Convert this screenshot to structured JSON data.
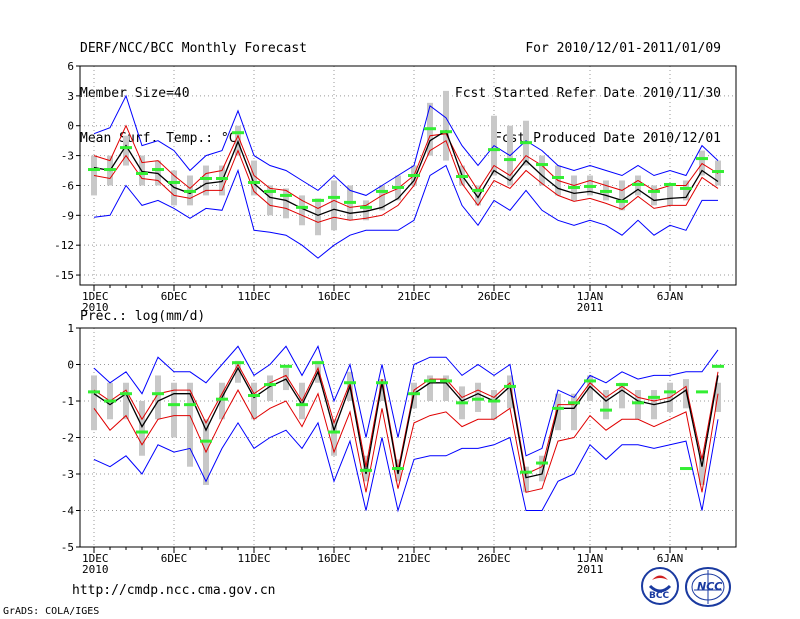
{
  "header": {
    "left": [
      "DERF/NCC/BCC Monthly Forecast",
      "Member Size=40",
      "Mean Surf. Temp.: °C"
    ],
    "right": [
      "For 2010/12/01-2011/01/09",
      "Fcst Started Refer Date 2010/11/30",
      "Fcst Produced Date 2010/12/01"
    ]
  },
  "footer": {
    "url": "http://cmdp.ncc.cma.gov.cn",
    "credit": "GrADS: COLA/IGES",
    "logo_bcc": "BCC",
    "logo_ncc": "NCC"
  },
  "colors": {
    "ensemble": "#0000ff",
    "spread": "#e00000",
    "mean": "#000000",
    "obs": "#33ee33",
    "bar": "#c8c8c8",
    "grid": "#999999"
  },
  "chart_data": [
    {
      "type": "line",
      "title": "Mean Surf. Temp.: °C",
      "x": [
        1,
        2,
        3,
        4,
        5,
        6,
        7,
        8,
        9,
        10,
        11,
        12,
        13,
        14,
        15,
        16,
        17,
        18,
        19,
        20,
        21,
        22,
        23,
        24,
        25,
        26,
        27,
        28,
        29,
        30,
        31,
        32,
        33,
        34,
        35,
        36,
        37,
        38,
        39,
        40
      ],
      "xticks": [
        {
          "day": 1,
          "label": "1DEC",
          "sub": "2010"
        },
        {
          "day": 6,
          "label": "6DEC",
          "sub": ""
        },
        {
          "day": 11,
          "label": "11DEC",
          "sub": ""
        },
        {
          "day": 16,
          "label": "16DEC",
          "sub": ""
        },
        {
          "day": 21,
          "label": "21DEC",
          "sub": ""
        },
        {
          "day": 26,
          "label": "26DEC",
          "sub": ""
        },
        {
          "day": 32,
          "label": "1JAN",
          "sub": "2011"
        },
        {
          "day": 37,
          "label": "6JAN",
          "sub": ""
        }
      ],
      "ylim": [
        -16,
        6
      ],
      "yticks": [
        6,
        3,
        0,
        -3,
        -6,
        -9,
        -12,
        -15
      ],
      "series": [
        {
          "name": "ensemble max",
          "values": [
            -0.8,
            -0.2,
            3.0,
            -2.0,
            -1.5,
            -2.5,
            -4.5,
            -3.0,
            -2.5,
            1.5,
            -3.0,
            -4.0,
            -4.5,
            -5.5,
            -6.5,
            -5.0,
            -6.5,
            -7.0,
            -6.0,
            -5.0,
            -4.0,
            2.0,
            0.8,
            -2.0,
            -4.0,
            -2.0,
            -3.0,
            -1.5,
            -2.5,
            -4.0,
            -4.5,
            -4.0,
            -4.5,
            -5.0,
            -4.0,
            -5.0,
            -4.5,
            -5.0,
            -2.0,
            -3.5
          ]
        },
        {
          "name": "spread upper",
          "values": [
            -3.0,
            -3.5,
            0.0,
            -3.7,
            -3.5,
            -5.0,
            -6.3,
            -4.8,
            -4.5,
            -1.0,
            -5.0,
            -6.3,
            -6.5,
            -7.5,
            -8.3,
            -7.5,
            -8.2,
            -8.0,
            -7.0,
            -6.3,
            -5.0,
            -1.0,
            -0.8,
            -4.0,
            -6.5,
            -4.0,
            -5.0,
            -3.0,
            -4.0,
            -5.5,
            -6.0,
            -5.5,
            -6.0,
            -6.5,
            -5.5,
            -6.5,
            -6.0,
            -6.0,
            -3.8,
            -4.8
          ]
        },
        {
          "name": "ensemble mean",
          "values": [
            -4.2,
            -4.5,
            -2.0,
            -4.6,
            -4.8,
            -6.2,
            -6.8,
            -5.8,
            -5.6,
            -1.6,
            -5.8,
            -7.2,
            -7.5,
            -8.3,
            -9.0,
            -8.4,
            -8.8,
            -8.6,
            -8.2,
            -7.3,
            -5.5,
            -1.5,
            -0.5,
            -5.0,
            -7.2,
            -4.5,
            -5.5,
            -3.5,
            -5.0,
            -6.3,
            -6.8,
            -6.6,
            -7.0,
            -7.5,
            -6.4,
            -7.5,
            -7.3,
            -7.2,
            -4.5,
            -5.6
          ]
        },
        {
          "name": "spread lower",
          "values": [
            -5.0,
            -5.3,
            -3.0,
            -5.3,
            -5.5,
            -7.0,
            -7.3,
            -6.5,
            -6.5,
            -2.5,
            -6.6,
            -8.0,
            -8.3,
            -9.0,
            -9.7,
            -9.2,
            -9.5,
            -9.3,
            -9.0,
            -8.0,
            -6.0,
            -2.5,
            -1.5,
            -5.8,
            -8.0,
            -5.5,
            -6.3,
            -4.5,
            -5.8,
            -7.0,
            -7.6,
            -7.3,
            -7.8,
            -8.4,
            -7.1,
            -8.3,
            -8.0,
            -8.0,
            -5.2,
            -6.3
          ]
        },
        {
          "name": "ensemble min",
          "values": [
            -9.2,
            -9.0,
            -6.0,
            -8.0,
            -7.5,
            -8.3,
            -9.3,
            -8.3,
            -8.5,
            -4.5,
            -10.5,
            -10.7,
            -11.0,
            -12.0,
            -13.3,
            -12.0,
            -11.0,
            -10.5,
            -10.5,
            -10.5,
            -9.5,
            -5.0,
            -4.0,
            -8.0,
            -10.0,
            -7.5,
            -8.5,
            -6.5,
            -8.5,
            -9.5,
            -10.0,
            -9.5,
            -10.0,
            -11.0,
            -9.5,
            -11.0,
            -10.0,
            -10.5,
            -7.5,
            -7.5
          ]
        },
        {
          "name": "observation",
          "values": [
            -4.4,
            -4.4,
            -2.2,
            -4.8,
            -4.4,
            -5.7,
            -6.6,
            -5.3,
            -5.3,
            -0.7,
            -5.7,
            -6.6,
            -7.0,
            -8.2,
            -7.5,
            -7.2,
            -7.7,
            -8.2,
            -6.6,
            -6.2,
            -5.0,
            -0.3,
            -0.6,
            -5.1,
            -6.5,
            -2.4,
            -3.4,
            -1.7,
            -3.9,
            -5.2,
            -6.2,
            -6.1,
            -6.6,
            -7.6,
            -5.9,
            -6.6,
            -5.9,
            -6.3,
            -3.3,
            -4.6
          ]
        },
        {
          "name": "bar top",
          "values": [
            -3.0,
            -3.0,
            -1.0,
            -3.0,
            -3.5,
            -4.5,
            -5.0,
            -4.0,
            -4.0,
            0.0,
            -3.5,
            -6.0,
            -6.3,
            -7.0,
            -7.3,
            -5.5,
            -6.0,
            -7.5,
            -6.0,
            -5.0,
            -4.0,
            2.3,
            3.5,
            -4.0,
            -6.0,
            1.0,
            0.0,
            0.5,
            -3.0,
            -4.0,
            -5.0,
            -5.0,
            -5.5,
            -5.5,
            -5.0,
            -6.0,
            -6.0,
            -5.5,
            -2.5,
            -3.5
          ]
        },
        {
          "name": "bar bottom",
          "values": [
            -7.0,
            -6.0,
            -4.0,
            -6.0,
            -6.0,
            -8.0,
            -8.0,
            -7.0,
            -7.0,
            -3.0,
            -7.0,
            -9.0,
            -9.3,
            -10.0,
            -11.0,
            -10.5,
            -9.5,
            -9.5,
            -8.5,
            -7.5,
            -6.0,
            -3.0,
            -3.5,
            -6.0,
            -8.0,
            -5.0,
            -6.0,
            -4.0,
            -6.0,
            -7.0,
            -7.5,
            -7.0,
            -7.5,
            -8.5,
            -7.0,
            -8.0,
            -8.0,
            -7.5,
            -5.0,
            -6.0
          ]
        }
      ]
    },
    {
      "type": "line",
      "title": "Prec.: log(mm/d)",
      "x": [
        1,
        2,
        3,
        4,
        5,
        6,
        7,
        8,
        9,
        10,
        11,
        12,
        13,
        14,
        15,
        16,
        17,
        18,
        19,
        20,
        21,
        22,
        23,
        24,
        25,
        26,
        27,
        28,
        29,
        30,
        31,
        32,
        33,
        34,
        35,
        36,
        37,
        38,
        39,
        40
      ],
      "xticks": [
        {
          "day": 1,
          "label": "1DEC",
          "sub": "2010"
        },
        {
          "day": 6,
          "label": "6DEC",
          "sub": ""
        },
        {
          "day": 11,
          "label": "11DEC",
          "sub": ""
        },
        {
          "day": 16,
          "label": "16DEC",
          "sub": ""
        },
        {
          "day": 21,
          "label": "21DEC",
          "sub": ""
        },
        {
          "day": 26,
          "label": "26DEC",
          "sub": ""
        },
        {
          "day": 32,
          "label": "1JAN",
          "sub": "2011"
        },
        {
          "day": 37,
          "label": "6JAN",
          "sub": ""
        }
      ],
      "ylim": [
        -5,
        1
      ],
      "yticks": [
        1,
        0,
        -1,
        -2,
        -3,
        -4,
        -5
      ],
      "series": [
        {
          "name": "ensemble max",
          "values": [
            -0.1,
            -0.5,
            -0.2,
            -0.8,
            0.2,
            -0.2,
            -0.2,
            -0.5,
            0.0,
            0.5,
            -0.3,
            0.0,
            0.5,
            -0.3,
            0.5,
            -1.0,
            0.0,
            -2.0,
            0.0,
            -2.0,
            0.0,
            0.2,
            0.2,
            -0.3,
            0.0,
            -0.3,
            0.0,
            -2.5,
            -2.3,
            -0.7,
            -0.9,
            -0.3,
            -0.5,
            -0.2,
            -0.4,
            -0.3,
            -0.3,
            -0.2,
            -0.2,
            0.4
          ]
        },
        {
          "name": "spread upper",
          "values": [
            -0.7,
            -1.0,
            -0.7,
            -1.5,
            -0.8,
            -0.7,
            -0.7,
            -1.6,
            -0.8,
            -0.0,
            -0.8,
            -0.5,
            -0.3,
            -1.0,
            -0.1,
            -1.6,
            -0.5,
            -2.8,
            -0.4,
            -2.9,
            -0.7,
            -0.4,
            -0.4,
            -0.9,
            -0.7,
            -0.9,
            -0.5,
            -3.0,
            -2.8,
            -1.1,
            -1.1,
            -0.5,
            -0.9,
            -0.6,
            -0.9,
            -1.0,
            -0.9,
            -0.6,
            -2.6,
            -0.2
          ]
        },
        {
          "name": "ensemble mean",
          "values": [
            -0.8,
            -1.1,
            -0.8,
            -1.7,
            -1.0,
            -0.8,
            -0.8,
            -1.8,
            -0.9,
            -0.1,
            -0.9,
            -0.6,
            -0.4,
            -1.1,
            -0.2,
            -1.8,
            -0.6,
            -3.0,
            -0.5,
            -3.0,
            -0.8,
            -0.5,
            -0.5,
            -1.0,
            -0.8,
            -1.0,
            -0.6,
            -3.1,
            -3.0,
            -1.2,
            -1.2,
            -0.6,
            -1.0,
            -0.7,
            -1.0,
            -1.1,
            -1.0,
            -0.7,
            -2.8,
            -0.3
          ]
        },
        {
          "name": "spread lower",
          "values": [
            -1.2,
            -1.8,
            -1.4,
            -2.2,
            -1.5,
            -1.4,
            -1.4,
            -2.4,
            -1.5,
            -0.7,
            -1.5,
            -1.2,
            -1.0,
            -1.7,
            -0.8,
            -2.4,
            -1.3,
            -3.5,
            -1.2,
            -3.4,
            -1.6,
            -1.4,
            -1.3,
            -1.7,
            -1.5,
            -1.5,
            -1.2,
            -3.5,
            -3.4,
            -2.1,
            -2.0,
            -1.4,
            -1.8,
            -1.5,
            -1.5,
            -1.7,
            -1.5,
            -1.3,
            -3.5,
            -0.8
          ]
        },
        {
          "name": "ensemble min",
          "values": [
            -2.6,
            -2.8,
            -2.5,
            -3.0,
            -2.2,
            -2.4,
            -2.3,
            -3.2,
            -2.3,
            -1.6,
            -2.3,
            -2.0,
            -1.8,
            -2.3,
            -1.6,
            -3.2,
            -2.1,
            -4.0,
            -2.0,
            -4.0,
            -2.6,
            -2.5,
            -2.5,
            -2.3,
            -2.3,
            -2.2,
            -2.0,
            -4.0,
            -4.0,
            -3.2,
            -3.0,
            -2.2,
            -2.6,
            -2.2,
            -2.2,
            -2.3,
            -2.2,
            -2.1,
            -4.0,
            -1.5
          ]
        },
        {
          "name": "observation",
          "values": [
            -0.75,
            -1.0,
            -0.8,
            -1.85,
            -0.8,
            -1.1,
            -1.1,
            -2.1,
            -0.95,
            0.05,
            -0.85,
            -0.55,
            -0.05,
            -1.1,
            0.05,
            -1.85,
            -0.5,
            -2.9,
            -0.5,
            -2.85,
            -0.8,
            -0.45,
            -0.45,
            -1.05,
            -0.95,
            -1.0,
            -0.6,
            -2.95,
            -2.7,
            -1.2,
            -1.05,
            -0.45,
            -1.25,
            -0.55,
            -1.05,
            -0.9,
            -0.75,
            -2.85,
            -0.75,
            -0.05
          ]
        },
        {
          "name": "bar top",
          "values": [
            -0.3,
            -0.5,
            -0.5,
            -1.0,
            -0.3,
            -0.5,
            -0.5,
            -1.5,
            -0.5,
            0.1,
            -0.5,
            -0.3,
            -0.1,
            -0.5,
            0.1,
            -1.5,
            -0.2,
            -2.5,
            -0.4,
            -2.6,
            -0.5,
            -0.3,
            -0.3,
            -0.6,
            -0.5,
            -0.7,
            -0.3,
            -2.8,
            -2.5,
            -0.8,
            -0.8,
            -0.3,
            -0.7,
            -0.5,
            -0.7,
            -0.7,
            -0.5,
            -0.4,
            -2.5,
            -0.5
          ]
        },
        {
          "name": "bar bottom",
          "values": [
            -1.8,
            -1.5,
            -1.5,
            -2.5,
            -1.5,
            -2.0,
            -2.8,
            -3.3,
            -1.5,
            -0.5,
            -1.5,
            -1.0,
            -0.7,
            -1.5,
            -0.5,
            -2.5,
            -1.0,
            -3.2,
            -1.0,
            -3.2,
            -1.2,
            -1.0,
            -1.0,
            -1.5,
            -1.3,
            -1.5,
            -1.2,
            -3.5,
            -3.2,
            -1.8,
            -1.8,
            -1.0,
            -1.5,
            -1.2,
            -1.5,
            -1.5,
            -1.3,
            -1.2,
            -3.3,
            -1.3
          ]
        }
      ]
    }
  ]
}
